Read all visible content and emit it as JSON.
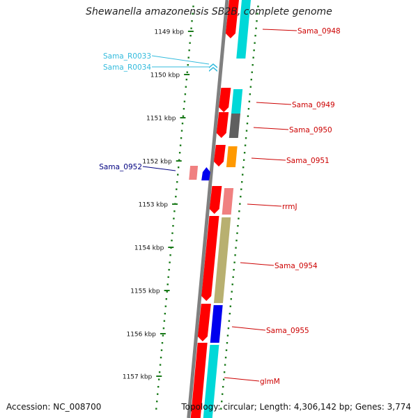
{
  "title": "Shewanella amazonensis SB2B, complete genome",
  "footer": {
    "accession": "Accession: NC_008700",
    "topology": "Topology: circular; Length: 4,306,142 bp; Genes: 3,774"
  },
  "colors": {
    "backbone": "#808080",
    "tick": "#1a7a1a",
    "label_red": "#cc0000",
    "label_cyan": "#33bbdd",
    "label_navy": "#000080",
    "gene_red": "#ff0000",
    "gene_cyan": "#00d8d8",
    "gene_gray": "#606060",
    "gene_orange": "#ff9900",
    "gene_pink": "#f08080",
    "gene_olive": "#b8b070",
    "gene_blue": "#0000ee"
  },
  "scale": {
    "ticks": [
      {
        "label": "1149 kbp"
      },
      {
        "label": "1150 kbp"
      },
      {
        "label": "1151 kbp"
      },
      {
        "label": "1152 kbp"
      },
      {
        "label": "1153 kbp"
      },
      {
        "label": "1154 kbp"
      },
      {
        "label": "1155 kbp"
      },
      {
        "label": "1156 kbp"
      },
      {
        "label": "1157 kbp"
      }
    ]
  },
  "gene_labels": [
    {
      "text": "Sama_0948",
      "side": "right",
      "color": "label_red"
    },
    {
      "text": "Sama_R0033",
      "side": "left",
      "color": "label_cyan"
    },
    {
      "text": "Sama_R0034",
      "side": "left",
      "color": "label_cyan"
    },
    {
      "text": "Sama_0949",
      "side": "right",
      "color": "label_red"
    },
    {
      "text": "Sama_0950",
      "side": "right",
      "color": "label_red"
    },
    {
      "text": "Sama_0951",
      "side": "right",
      "color": "label_red"
    },
    {
      "text": "Sama_0952",
      "side": "left",
      "color": "label_navy"
    },
    {
      "text": "rrmJ",
      "side": "right",
      "color": "label_red"
    },
    {
      "text": "Sama_0954",
      "side": "right",
      "color": "label_red"
    },
    {
      "text": "Sama_0955",
      "side": "right",
      "color": "label_red"
    },
    {
      "text": "glmM",
      "side": "right",
      "color": "label_red"
    }
  ]
}
